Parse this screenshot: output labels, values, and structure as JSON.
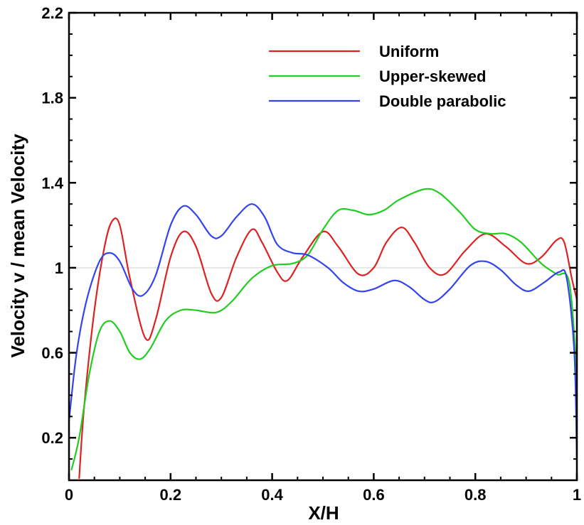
{
  "chart_data": {
    "type": "line",
    "title": "",
    "xlabel": "X/H",
    "ylabel": "Velocity v / mean Velocity",
    "xlim": [
      0,
      1
    ],
    "ylim": [
      0,
      2.2
    ],
    "xticks": [
      0,
      0.2,
      0.4,
      0.6,
      0.8,
      1
    ],
    "xtick_labels": [
      "0",
      "0.2",
      "0.4",
      "0.6",
      "0.8",
      "1"
    ],
    "yticks": [
      0.2,
      0.6,
      1.0,
      1.4,
      1.8,
      2.2
    ],
    "ytick_labels": [
      "0.2",
      "0.6",
      "1",
      "1.4",
      "1.8",
      "2.2"
    ],
    "reference_line": {
      "y": 1.0,
      "color": "#e6e6e6"
    },
    "grid": false,
    "legend_position": "top-right",
    "series": [
      {
        "name": "Uniform",
        "color": "#dd2222",
        "points": [
          [
            0.02,
            0.01
          ],
          [
            0.03,
            0.35
          ],
          [
            0.05,
            0.8
          ],
          [
            0.07,
            1.1
          ],
          [
            0.085,
            1.22
          ],
          [
            0.1,
            1.2
          ],
          [
            0.12,
            0.95
          ],
          [
            0.15,
            0.67
          ],
          [
            0.17,
            0.75
          ],
          [
            0.2,
            1.05
          ],
          [
            0.225,
            1.17
          ],
          [
            0.25,
            1.1
          ],
          [
            0.28,
            0.88
          ],
          [
            0.3,
            0.86
          ],
          [
            0.33,
            1.05
          ],
          [
            0.36,
            1.18
          ],
          [
            0.38,
            1.12
          ],
          [
            0.41,
            0.98
          ],
          [
            0.43,
            0.94
          ],
          [
            0.46,
            1.05
          ],
          [
            0.5,
            1.17
          ],
          [
            0.53,
            1.1
          ],
          [
            0.57,
            0.97
          ],
          [
            0.6,
            1.0
          ],
          [
            0.625,
            1.12
          ],
          [
            0.655,
            1.19
          ],
          [
            0.68,
            1.12
          ],
          [
            0.71,
            1.0
          ],
          [
            0.74,
            0.97
          ],
          [
            0.78,
            1.08
          ],
          [
            0.82,
            1.16
          ],
          [
            0.86,
            1.1
          ],
          [
            0.9,
            1.02
          ],
          [
            0.93,
            1.05
          ],
          [
            0.96,
            1.13
          ],
          [
            0.975,
            1.12
          ],
          [
            0.99,
            0.95
          ],
          [
            1.0,
            0.85
          ]
        ]
      },
      {
        "name": "Upper-skewed",
        "color": "#22cc22",
        "points": [
          [
            0.005,
            0.05
          ],
          [
            0.02,
            0.2
          ],
          [
            0.04,
            0.5
          ],
          [
            0.06,
            0.7
          ],
          [
            0.08,
            0.75
          ],
          [
            0.1,
            0.7
          ],
          [
            0.12,
            0.6
          ],
          [
            0.14,
            0.57
          ],
          [
            0.16,
            0.62
          ],
          [
            0.19,
            0.75
          ],
          [
            0.22,
            0.8
          ],
          [
            0.25,
            0.8
          ],
          [
            0.29,
            0.79
          ],
          [
            0.32,
            0.84
          ],
          [
            0.36,
            0.95
          ],
          [
            0.4,
            1.01
          ],
          [
            0.44,
            1.02
          ],
          [
            0.47,
            1.06
          ],
          [
            0.5,
            1.18
          ],
          [
            0.53,
            1.27
          ],
          [
            0.56,
            1.27
          ],
          [
            0.59,
            1.25
          ],
          [
            0.62,
            1.27
          ],
          [
            0.65,
            1.32
          ],
          [
            0.7,
            1.37
          ],
          [
            0.73,
            1.35
          ],
          [
            0.77,
            1.26
          ],
          [
            0.8,
            1.18
          ],
          [
            0.83,
            1.16
          ],
          [
            0.86,
            1.16
          ],
          [
            0.89,
            1.12
          ],
          [
            0.93,
            1.02
          ],
          [
            0.96,
            0.97
          ],
          [
            0.985,
            0.93
          ],
          [
            1.0,
            0.5
          ]
        ]
      },
      {
        "name": "Double parabolic",
        "color": "#3344ee",
        "points": [
          [
            0.0,
            0.28
          ],
          [
            0.015,
            0.6
          ],
          [
            0.035,
            0.85
          ],
          [
            0.06,
            1.03
          ],
          [
            0.08,
            1.07
          ],
          [
            0.1,
            1.03
          ],
          [
            0.125,
            0.9
          ],
          [
            0.145,
            0.87
          ],
          [
            0.17,
            0.96
          ],
          [
            0.2,
            1.2
          ],
          [
            0.225,
            1.29
          ],
          [
            0.25,
            1.25
          ],
          [
            0.28,
            1.15
          ],
          [
            0.3,
            1.15
          ],
          [
            0.33,
            1.24
          ],
          [
            0.36,
            1.3
          ],
          [
            0.385,
            1.24
          ],
          [
            0.41,
            1.11
          ],
          [
            0.44,
            1.07
          ],
          [
            0.47,
            1.06
          ],
          [
            0.51,
            1.0
          ],
          [
            0.54,
            0.93
          ],
          [
            0.57,
            0.89
          ],
          [
            0.6,
            0.9
          ],
          [
            0.64,
            0.94
          ],
          [
            0.67,
            0.91
          ],
          [
            0.7,
            0.85
          ],
          [
            0.72,
            0.84
          ],
          [
            0.75,
            0.9
          ],
          [
            0.79,
            1.01
          ],
          [
            0.82,
            1.03
          ],
          [
            0.85,
            0.99
          ],
          [
            0.88,
            0.92
          ],
          [
            0.905,
            0.89
          ],
          [
            0.935,
            0.93
          ],
          [
            0.965,
            0.98
          ],
          [
            0.98,
            0.95
          ],
          [
            0.995,
            0.6
          ],
          [
            1.0,
            0.08
          ]
        ]
      }
    ]
  }
}
